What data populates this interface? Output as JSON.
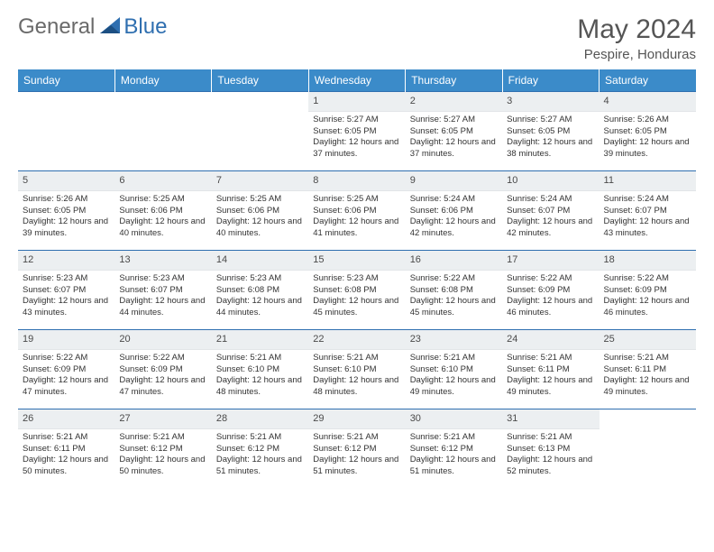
{
  "logo": {
    "general": "General",
    "blue": "Blue"
  },
  "title": "May 2024",
  "location": "Pespire, Honduras",
  "colors": {
    "header_bg": "#3b8bc9",
    "header_text": "#ffffff",
    "rule": "#2f6fb0",
    "daynum_bg": "#eceff1",
    "body_text": "#333333",
    "logo_gray": "#6a6a6a",
    "logo_blue": "#2f6fb0"
  },
  "fonts": {
    "base_family": "Arial",
    "title_size_pt": 22,
    "header_size_pt": 9,
    "cell_size_pt": 7
  },
  "dayHeaders": [
    "Sunday",
    "Monday",
    "Tuesday",
    "Wednesday",
    "Thursday",
    "Friday",
    "Saturday"
  ],
  "weeks": [
    [
      {
        "n": "",
        "sr": "",
        "ss": "",
        "dl": ""
      },
      {
        "n": "",
        "sr": "",
        "ss": "",
        "dl": ""
      },
      {
        "n": "",
        "sr": "",
        "ss": "",
        "dl": ""
      },
      {
        "n": "1",
        "sr": "Sunrise: 5:27 AM",
        "ss": "Sunset: 6:05 PM",
        "dl": "Daylight: 12 hours and 37 minutes."
      },
      {
        "n": "2",
        "sr": "Sunrise: 5:27 AM",
        "ss": "Sunset: 6:05 PM",
        "dl": "Daylight: 12 hours and 37 minutes."
      },
      {
        "n": "3",
        "sr": "Sunrise: 5:27 AM",
        "ss": "Sunset: 6:05 PM",
        "dl": "Daylight: 12 hours and 38 minutes."
      },
      {
        "n": "4",
        "sr": "Sunrise: 5:26 AM",
        "ss": "Sunset: 6:05 PM",
        "dl": "Daylight: 12 hours and 39 minutes."
      }
    ],
    [
      {
        "n": "5",
        "sr": "Sunrise: 5:26 AM",
        "ss": "Sunset: 6:05 PM",
        "dl": "Daylight: 12 hours and 39 minutes."
      },
      {
        "n": "6",
        "sr": "Sunrise: 5:25 AM",
        "ss": "Sunset: 6:06 PM",
        "dl": "Daylight: 12 hours and 40 minutes."
      },
      {
        "n": "7",
        "sr": "Sunrise: 5:25 AM",
        "ss": "Sunset: 6:06 PM",
        "dl": "Daylight: 12 hours and 40 minutes."
      },
      {
        "n": "8",
        "sr": "Sunrise: 5:25 AM",
        "ss": "Sunset: 6:06 PM",
        "dl": "Daylight: 12 hours and 41 minutes."
      },
      {
        "n": "9",
        "sr": "Sunrise: 5:24 AM",
        "ss": "Sunset: 6:06 PM",
        "dl": "Daylight: 12 hours and 42 minutes."
      },
      {
        "n": "10",
        "sr": "Sunrise: 5:24 AM",
        "ss": "Sunset: 6:07 PM",
        "dl": "Daylight: 12 hours and 42 minutes."
      },
      {
        "n": "11",
        "sr": "Sunrise: 5:24 AM",
        "ss": "Sunset: 6:07 PM",
        "dl": "Daylight: 12 hours and 43 minutes."
      }
    ],
    [
      {
        "n": "12",
        "sr": "Sunrise: 5:23 AM",
        "ss": "Sunset: 6:07 PM",
        "dl": "Daylight: 12 hours and 43 minutes."
      },
      {
        "n": "13",
        "sr": "Sunrise: 5:23 AM",
        "ss": "Sunset: 6:07 PM",
        "dl": "Daylight: 12 hours and 44 minutes."
      },
      {
        "n": "14",
        "sr": "Sunrise: 5:23 AM",
        "ss": "Sunset: 6:08 PM",
        "dl": "Daylight: 12 hours and 44 minutes."
      },
      {
        "n": "15",
        "sr": "Sunrise: 5:23 AM",
        "ss": "Sunset: 6:08 PM",
        "dl": "Daylight: 12 hours and 45 minutes."
      },
      {
        "n": "16",
        "sr": "Sunrise: 5:22 AM",
        "ss": "Sunset: 6:08 PM",
        "dl": "Daylight: 12 hours and 45 minutes."
      },
      {
        "n": "17",
        "sr": "Sunrise: 5:22 AM",
        "ss": "Sunset: 6:09 PM",
        "dl": "Daylight: 12 hours and 46 minutes."
      },
      {
        "n": "18",
        "sr": "Sunrise: 5:22 AM",
        "ss": "Sunset: 6:09 PM",
        "dl": "Daylight: 12 hours and 46 minutes."
      }
    ],
    [
      {
        "n": "19",
        "sr": "Sunrise: 5:22 AM",
        "ss": "Sunset: 6:09 PM",
        "dl": "Daylight: 12 hours and 47 minutes."
      },
      {
        "n": "20",
        "sr": "Sunrise: 5:22 AM",
        "ss": "Sunset: 6:09 PM",
        "dl": "Daylight: 12 hours and 47 minutes."
      },
      {
        "n": "21",
        "sr": "Sunrise: 5:21 AM",
        "ss": "Sunset: 6:10 PM",
        "dl": "Daylight: 12 hours and 48 minutes."
      },
      {
        "n": "22",
        "sr": "Sunrise: 5:21 AM",
        "ss": "Sunset: 6:10 PM",
        "dl": "Daylight: 12 hours and 48 minutes."
      },
      {
        "n": "23",
        "sr": "Sunrise: 5:21 AM",
        "ss": "Sunset: 6:10 PM",
        "dl": "Daylight: 12 hours and 49 minutes."
      },
      {
        "n": "24",
        "sr": "Sunrise: 5:21 AM",
        "ss": "Sunset: 6:11 PM",
        "dl": "Daylight: 12 hours and 49 minutes."
      },
      {
        "n": "25",
        "sr": "Sunrise: 5:21 AM",
        "ss": "Sunset: 6:11 PM",
        "dl": "Daylight: 12 hours and 49 minutes."
      }
    ],
    [
      {
        "n": "26",
        "sr": "Sunrise: 5:21 AM",
        "ss": "Sunset: 6:11 PM",
        "dl": "Daylight: 12 hours and 50 minutes."
      },
      {
        "n": "27",
        "sr": "Sunrise: 5:21 AM",
        "ss": "Sunset: 6:12 PM",
        "dl": "Daylight: 12 hours and 50 minutes."
      },
      {
        "n": "28",
        "sr": "Sunrise: 5:21 AM",
        "ss": "Sunset: 6:12 PM",
        "dl": "Daylight: 12 hours and 51 minutes."
      },
      {
        "n": "29",
        "sr": "Sunrise: 5:21 AM",
        "ss": "Sunset: 6:12 PM",
        "dl": "Daylight: 12 hours and 51 minutes."
      },
      {
        "n": "30",
        "sr": "Sunrise: 5:21 AM",
        "ss": "Sunset: 6:12 PM",
        "dl": "Daylight: 12 hours and 51 minutes."
      },
      {
        "n": "31",
        "sr": "Sunrise: 5:21 AM",
        "ss": "Sunset: 6:13 PM",
        "dl": "Daylight: 12 hours and 52 minutes."
      },
      {
        "n": "",
        "sr": "",
        "ss": "",
        "dl": ""
      }
    ]
  ]
}
